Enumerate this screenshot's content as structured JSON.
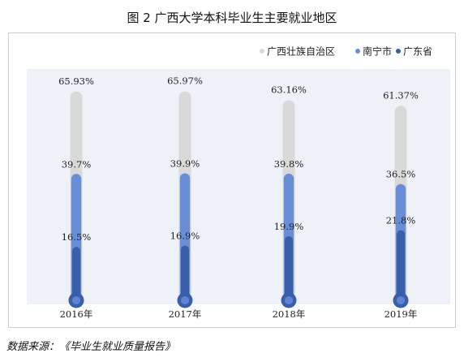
{
  "figure_title": "图 2  广西大学本科毕业生主要就业地区",
  "source_note": "数据来源：《毕业生就业质量报告》",
  "colors": {
    "plot_background": "#eef1f8",
    "guangxi": "#d9d9d9",
    "nanning": "#6a8ed6",
    "guangdong": "#3a5ea8"
  },
  "chart_data": {
    "type": "bar",
    "categories": [
      "2016年",
      "2017年",
      "2018年",
      "2019年"
    ],
    "series": [
      {
        "name": "广西壮族自治区",
        "values": [
          65.93,
          65.97,
          63.16,
          61.37
        ],
        "labels": [
          "65.93%",
          "65.97%",
          "63.16%",
          "61.37%"
        ]
      },
      {
        "name": "南宁市",
        "values": [
          39.7,
          39.9,
          39.8,
          36.5
        ],
        "labels": [
          "39.7%",
          "39.9%",
          "39.8%",
          "36.5%"
        ]
      },
      {
        "name": "广东省",
        "values": [
          16.5,
          16.9,
          19.9,
          21.8
        ],
        "labels": [
          "16.5%",
          "16.9%",
          "19.9%",
          "21.8%"
        ]
      }
    ],
    "ylim": [
      0,
      70
    ],
    "legend_position": "top-right",
    "grid": false
  }
}
